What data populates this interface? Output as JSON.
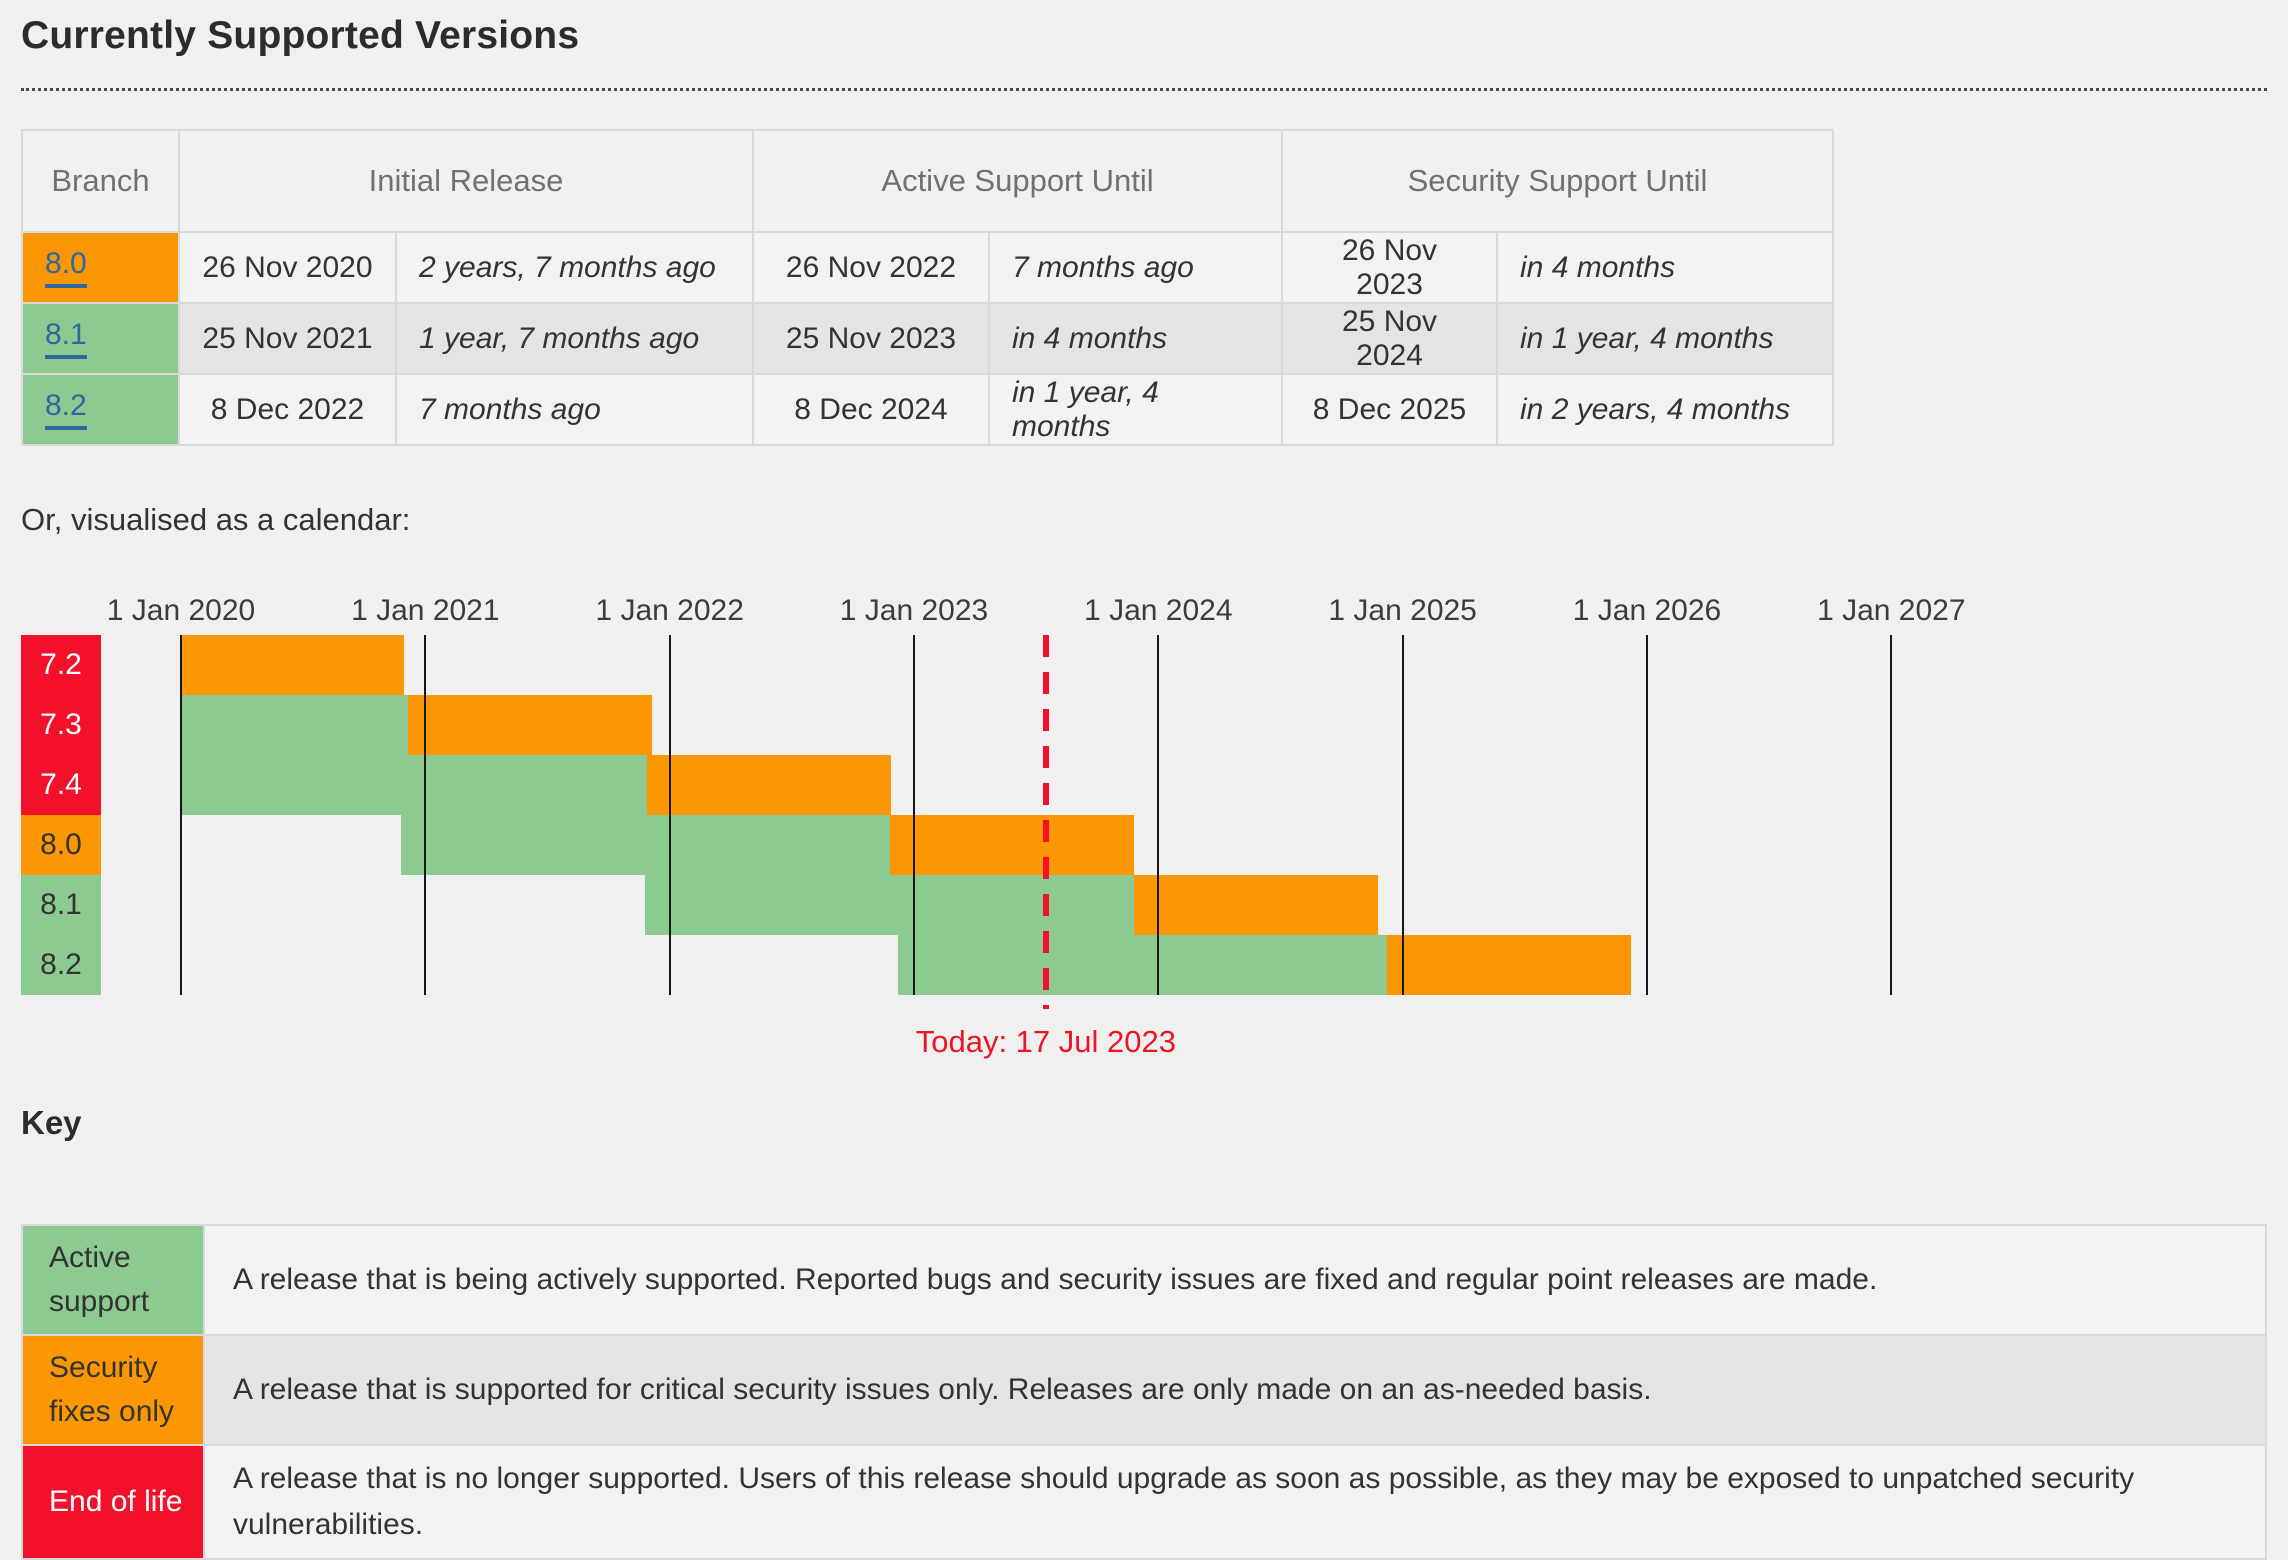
{
  "page": {
    "title": "Currently Supported Versions",
    "calendar_intro": "Or, visualised as a calendar:",
    "key_heading": "Key"
  },
  "colors": {
    "active_green": "#8cca92",
    "security_orange": "#fb9702",
    "eol_red": "#f2102a",
    "link_blue": "#2d69a0",
    "grid_line": "#161616",
    "today_red": "#ee1424",
    "row_bg": "#f2f2f2",
    "row_alt_bg": "#e4e4e4",
    "table_border": "#d8d8d8",
    "page_bg": "#f0f0f0",
    "header_text": "#717171",
    "body_text": "#333333"
  },
  "support_table": {
    "headers": [
      "Branch",
      "Initial Release",
      "Active Support Until",
      "Security Support Until"
    ],
    "rows": [
      {
        "branch": "8.0",
        "status": "security",
        "initial_release": "26 Nov 2020",
        "initial_release_rel": "2 years, 7 months ago",
        "active_until": "26 Nov 2022",
        "active_until_rel": "7 months ago",
        "security_until": "26 Nov 2023",
        "security_until_rel": "in 4 months"
      },
      {
        "branch": "8.1",
        "status": "active",
        "initial_release": "25 Nov 2021",
        "initial_release_rel": "1 year, 7 months ago",
        "active_until": "25 Nov 2023",
        "active_until_rel": "in 4 months",
        "security_until": "25 Nov 2024",
        "security_until_rel": "in 1 year, 4 months"
      },
      {
        "branch": "8.2",
        "status": "active",
        "initial_release": "8 Dec 2022",
        "initial_release_rel": "7 months ago",
        "active_until": "8 Dec 2024",
        "active_until_rel": "in 1 year, 4 months",
        "security_until": "8 Dec 2025",
        "security_until_rel": "in 2 years, 4 months"
      }
    ]
  },
  "chart_data": {
    "type": "gantt",
    "title": "Or, visualised as a calendar:",
    "x_axis": {
      "start_year": 2020,
      "end_year": 2027,
      "tick_labels": [
        "1 Jan 2020",
        "1 Jan 2021",
        "1 Jan 2022",
        "1 Jan 2023",
        "1 Jan 2024",
        "1 Jan 2025",
        "1 Jan 2026",
        "1 Jan 2027"
      ],
      "grid": true
    },
    "today": {
      "date": "2023-07-17",
      "label": "Today: 17 Jul 2023"
    },
    "rows": [
      {
        "branch": "7.2",
        "label_color": "eol",
        "segments": [
          {
            "kind": "security",
            "from": "2020-01-01",
            "to": "2020-11-30"
          }
        ]
      },
      {
        "branch": "7.3",
        "label_color": "eol",
        "segments": [
          {
            "kind": "active",
            "from": "2020-01-01",
            "to": "2020-12-06"
          },
          {
            "kind": "security",
            "from": "2020-12-06",
            "to": "2021-12-06"
          }
        ]
      },
      {
        "branch": "7.4",
        "label_color": "eol",
        "segments": [
          {
            "kind": "active",
            "from": "2020-01-01",
            "to": "2021-11-28"
          },
          {
            "kind": "security",
            "from": "2021-11-28",
            "to": "2022-11-28"
          }
        ]
      },
      {
        "branch": "8.0",
        "label_color": "security",
        "segments": [
          {
            "kind": "active",
            "from": "2020-11-26",
            "to": "2022-11-26"
          },
          {
            "kind": "security",
            "from": "2022-11-26",
            "to": "2023-11-26"
          }
        ]
      },
      {
        "branch": "8.1",
        "label_color": "active",
        "segments": [
          {
            "kind": "active",
            "from": "2021-11-25",
            "to": "2023-11-25"
          },
          {
            "kind": "security",
            "from": "2023-11-25",
            "to": "2024-11-25"
          }
        ]
      },
      {
        "branch": "8.2",
        "label_color": "active",
        "segments": [
          {
            "kind": "active",
            "from": "2022-12-08",
            "to": "2024-12-08"
          },
          {
            "kind": "security",
            "from": "2024-12-08",
            "to": "2025-12-08"
          }
        ]
      }
    ]
  },
  "key_table": {
    "rows": [
      {
        "label": "Active support",
        "color": "active",
        "description": "A release that is being actively supported. Reported bugs and security issues are fixed and regular point releases are made."
      },
      {
        "label": "Security fixes only",
        "color": "security",
        "description": "A release that is supported for critical security issues only. Releases are only made on an as-needed basis."
      },
      {
        "label": "End of life",
        "color": "eol",
        "description": "A release that is no longer supported. Users of this release should upgrade as soon as possible, as they may be exposed to unpatched security vulnerabilities."
      }
    ]
  }
}
